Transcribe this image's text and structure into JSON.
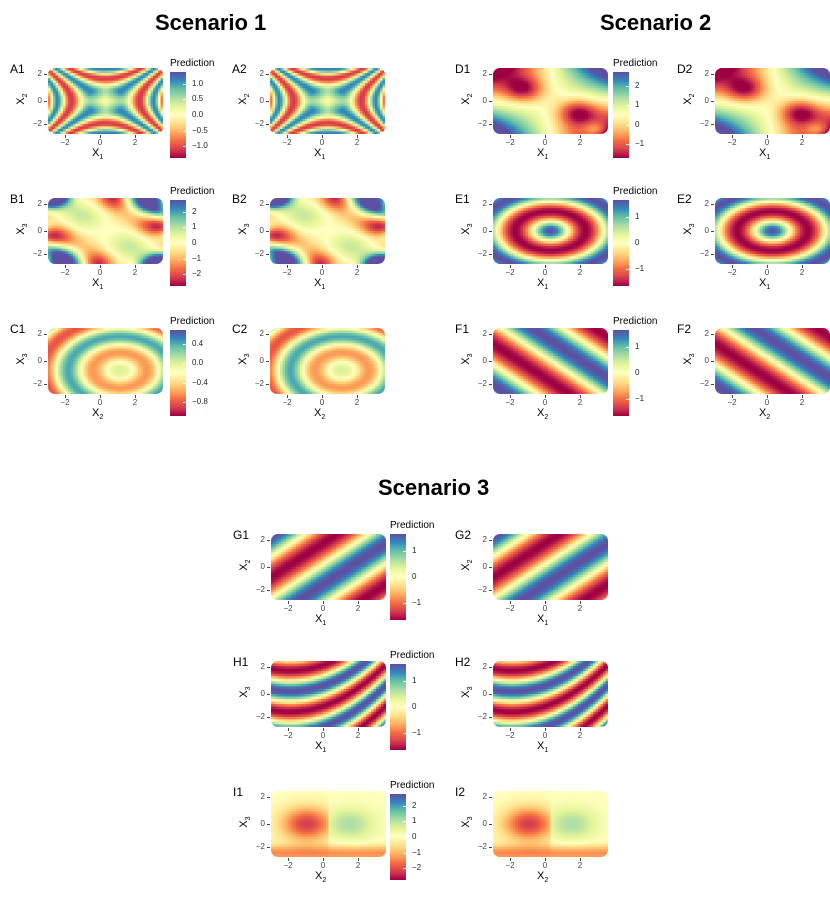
{
  "scenarios": [
    {
      "title": "Scenario 1"
    },
    {
      "title": "Scenario 2"
    },
    {
      "title": "Scenario 3"
    }
  ],
  "colors": {
    "palette": [
      "#9e0142",
      "#d53e4f",
      "#f46d43",
      "#fdae61",
      "#fee08b",
      "#ffffbf",
      "#e6f598",
      "#abdda4",
      "#66c2a5",
      "#3288bd",
      "#5e4fa2"
    ]
  },
  "axis_ticks": {
    "x": [
      "−2",
      "0",
      "2"
    ],
    "y": [
      "2",
      "0",
      "−2"
    ]
  },
  "chart_data": [
    {
      "type": "heatmap",
      "label": "A1",
      "xlabel_main": "X",
      "xlabel_sub": "1",
      "ylabel_main": "X",
      "ylabel_sub": "2",
      "pattern": "saddle",
      "legend_title": "Prediction",
      "legend_ticks": [
        "1.0",
        "0.5",
        "0.0",
        "−0.5",
        "−1.0"
      ],
      "range": [
        -1.2,
        1.2
      ]
    },
    {
      "type": "heatmap",
      "label": "A2",
      "xlabel_main": "X",
      "xlabel_sub": "1",
      "ylabel_main": "X",
      "ylabel_sub": "2",
      "pattern": "saddle"
    },
    {
      "type": "heatmap",
      "label": "D1",
      "xlabel_main": "X",
      "xlabel_sub": "1",
      "ylabel_main": "X",
      "ylabel_sub": "2",
      "pattern": "diagonal-blobs",
      "legend_title": "Prediction",
      "legend_ticks": [
        "2",
        "1",
        "0",
        "−1"
      ],
      "range": [
        -2,
        2.6
      ]
    },
    {
      "type": "heatmap",
      "label": "D2",
      "xlabel_main": "X",
      "xlabel_sub": "1",
      "ylabel_main": "X",
      "ylabel_sub": "2",
      "pattern": "diagonal-blobs"
    },
    {
      "type": "heatmap",
      "label": "B1",
      "xlabel_main": "X",
      "xlabel_sub": "1",
      "ylabel_main": "X",
      "ylabel_sub": "3",
      "pattern": "corners",
      "legend_title": "Prediction",
      "legend_ticks": [
        "2",
        "1",
        "0",
        "−1",
        "−2"
      ],
      "range": [
        -2.3,
        2.3
      ]
    },
    {
      "type": "heatmap",
      "label": "B2",
      "xlabel_main": "X",
      "xlabel_sub": "1",
      "ylabel_main": "X",
      "ylabel_sub": "3",
      "pattern": "corners"
    },
    {
      "type": "heatmap",
      "label": "E1",
      "xlabel_main": "X",
      "xlabel_sub": "1",
      "ylabel_main": "X",
      "ylabel_sub": "3",
      "pattern": "rings",
      "legend_title": "Prediction",
      "legend_ticks": [
        "1",
        "0",
        "−1"
      ],
      "range": [
        -1.5,
        1.7
      ]
    },
    {
      "type": "heatmap",
      "label": "E2",
      "xlabel_main": "X",
      "xlabel_sub": "1",
      "ylabel_main": "X",
      "ylabel_sub": "3",
      "pattern": "rings"
    },
    {
      "type": "heatmap",
      "label": "C1",
      "xlabel_main": "X",
      "xlabel_sub": "2",
      "ylabel_main": "X",
      "ylabel_sub": "3",
      "pattern": "offset-rings",
      "legend_title": "Prediction",
      "legend_ticks": [
        "0.4",
        "0.0",
        "−0.4",
        "−0.8"
      ],
      "range": [
        -0.9,
        0.7
      ]
    },
    {
      "type": "heatmap",
      "label": "C2",
      "xlabel_main": "X",
      "xlabel_sub": "2",
      "ylabel_main": "X",
      "ylabel_sub": "3",
      "pattern": "offset-rings"
    },
    {
      "type": "heatmap",
      "label": "F1",
      "xlabel_main": "X",
      "xlabel_sub": "2",
      "ylabel_main": "X",
      "ylabel_sub": "3",
      "pattern": "anti-diagonal",
      "legend_title": "Prediction",
      "legend_ticks": [
        "1",
        "0",
        "−1"
      ],
      "range": [
        -1.6,
        1.6
      ]
    },
    {
      "type": "heatmap",
      "label": "F2",
      "xlabel_main": "X",
      "xlabel_sub": "2",
      "ylabel_main": "X",
      "ylabel_sub": "3",
      "pattern": "anti-diagonal"
    },
    {
      "type": "heatmap",
      "label": "G1",
      "xlabel_main": "X",
      "xlabel_sub": "1",
      "ylabel_main": "X",
      "ylabel_sub": "2",
      "pattern": "diagonal-bands",
      "legend_title": "Prediction",
      "legend_ticks": [
        "1",
        "0",
        "−1"
      ],
      "range": [
        -1.7,
        1.7
      ]
    },
    {
      "type": "heatmap",
      "label": "G2",
      "xlabel_main": "X",
      "xlabel_sub": "1",
      "ylabel_main": "X",
      "ylabel_sub": "2",
      "pattern": "diagonal-bands"
    },
    {
      "type": "heatmap",
      "label": "H1",
      "xlabel_main": "X",
      "xlabel_sub": "1",
      "ylabel_main": "X",
      "ylabel_sub": "3",
      "pattern": "curved-bands",
      "legend_title": "Prediction",
      "legend_ticks": [
        "1",
        "0",
        "−1"
      ],
      "range": [
        -1.7,
        1.7
      ]
    },
    {
      "type": "heatmap",
      "label": "H2",
      "xlabel_main": "X",
      "xlabel_sub": "1",
      "ylabel_main": "X",
      "ylabel_sub": "3",
      "pattern": "curved-bands"
    },
    {
      "type": "heatmap",
      "label": "I1",
      "xlabel_main": "X",
      "xlabel_sub": "2",
      "ylabel_main": "X",
      "ylabel_sub": "3",
      "pattern": "step",
      "legend_title": "Prediction",
      "legend_ticks": [
        "2",
        "1",
        "0",
        "−1",
        "−2"
      ],
      "range": [
        -2.3,
        2.3
      ]
    },
    {
      "type": "heatmap",
      "label": "I2",
      "xlabel_main": "X",
      "xlabel_sub": "2",
      "ylabel_main": "X",
      "ylabel_sub": "3",
      "pattern": "step"
    }
  ]
}
